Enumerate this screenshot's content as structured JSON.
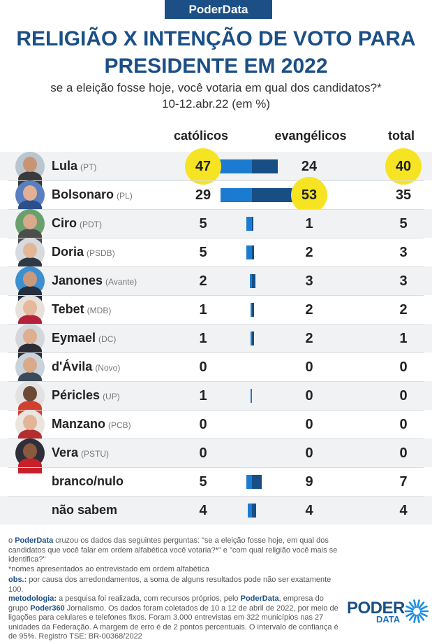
{
  "brand": "PoderData",
  "title_line1": "RELIGIÃO X INTENÇÃO DE VOTO PARA",
  "title_line2": "PRESIDENTE EM 2022",
  "subtitle_line1": "se a eleição fosse hoje, você votaria em qual dos candidatos?*",
  "subtitle_line2": "10-12.abr.22 (em %)",
  "colors": {
    "catolicos": "#1b7bd0",
    "evangelicos": "#164e85",
    "highlight": "#f6e423",
    "title": "#1b4f86"
  },
  "chart_data": {
    "type": "table",
    "columns": [
      "católicos",
      "evangélicos",
      "total"
    ],
    "rows": [
      {
        "name": "Lula",
        "party": "(PT)",
        "catolicos": 47,
        "evangelicos": 24,
        "total": 40,
        "highlight": [
          "catolicos",
          "total"
        ],
        "avatar": {
          "skin": "#c89574",
          "shirt": "#3a3a3a",
          "bg": "#b9c5cf"
        }
      },
      {
        "name": "Bolsonaro",
        "party": "(PL)",
        "catolicos": 29,
        "evangelicos": 53,
        "total": 35,
        "highlight": [
          "evangelicos"
        ],
        "avatar": {
          "skin": "#e2b195",
          "shirt": "#2a4f8a",
          "bg": "#5a7fc0"
        }
      },
      {
        "name": "Ciro",
        "party": "(PDT)",
        "catolicos": 5,
        "evangelicos": 1,
        "total": 5,
        "highlight": [],
        "avatar": {
          "skin": "#d8a98a",
          "shirt": "#4d4d4d",
          "bg": "#6aa06e"
        }
      },
      {
        "name": "Doria",
        "party": "(PSDB)",
        "catolicos": 5,
        "evangelicos": 2,
        "total": 3,
        "highlight": [],
        "avatar": {
          "skin": "#e3b698",
          "shirt": "#2f3847",
          "bg": "#d7dadf"
        }
      },
      {
        "name": "Janones",
        "party": "(Avante)",
        "catolicos": 2,
        "evangelicos": 3,
        "total": 3,
        "highlight": [],
        "avatar": {
          "skin": "#c99a7c",
          "shirt": "#22303f",
          "bg": "#3d8fcf"
        }
      },
      {
        "name": "Tebet",
        "party": "(MDB)",
        "catolicos": 1,
        "evangelicos": 2,
        "total": 2,
        "highlight": [],
        "avatar": {
          "skin": "#e6b89c",
          "shirt": "#b5203a",
          "bg": "#e8e1dc"
        }
      },
      {
        "name": "Eymael",
        "party": "(DC)",
        "catolicos": 1,
        "evangelicos": 2,
        "total": 1,
        "highlight": [],
        "avatar": {
          "skin": "#deae90",
          "shirt": "#2c2c35",
          "bg": "#d3d6da"
        }
      },
      {
        "name": "d'Ávila",
        "party": "(Novo)",
        "catolicos": 0,
        "evangelicos": 0,
        "total": 0,
        "highlight": [],
        "avatar": {
          "skin": "#d9a98a",
          "shirt": "#3a4a5a",
          "bg": "#c9d3dc"
        }
      },
      {
        "name": "Péricles",
        "party": "(UP)",
        "catolicos": 1,
        "evangelicos": 0,
        "total": 0,
        "highlight": [],
        "avatar": {
          "skin": "#6d4a34",
          "shirt": "#d33f2e",
          "bg": "#e2e2e2"
        }
      },
      {
        "name": "Manzano",
        "party": "(PCB)",
        "catolicos": 0,
        "evangelicos": 0,
        "total": 0,
        "highlight": [],
        "avatar": {
          "skin": "#e3b598",
          "shirt": "#b42e2e",
          "bg": "#ebe5df"
        }
      },
      {
        "name": "Vera",
        "party": "(PSTU)",
        "catolicos": 0,
        "evangelicos": 0,
        "total": 0,
        "highlight": [],
        "avatar": {
          "skin": "#8b5a3e",
          "shirt": "#c7202a",
          "bg": "#2f2f3a"
        }
      },
      {
        "name": "branco/nulo",
        "party": "",
        "catolicos": 5,
        "evangelicos": 9,
        "total": 7,
        "highlight": []
      },
      {
        "name": "não sabem",
        "party": "",
        "catolicos": 4,
        "evangelicos": 4,
        "total": 4,
        "highlight": []
      }
    ]
  },
  "notes": {
    "line1_prefix": "o",
    "line1_brand": "PoderData",
    "line1_rest": "cruzou os dados das seguintes perguntas: \"se a eleição fosse hoje, em qual dos candidatos que você falar em ordem alfabética você votaria?*\" e \"com qual religião você mais se identifica?\"",
    "line2": "*nomes apresentados ao entrevistado em ordem alfabética",
    "obs_label": "obs.:",
    "obs_text": "por causa dos arredondamentos, a soma de alguns resultados pode não ser exatamente 100.",
    "metodologia_label": "metodologia:",
    "metodologia_text1": "a pesquisa foi realizada, com recursos próprios, pelo",
    "metodologia_brand1": "PoderData",
    "metodologia_text2": ", empresa do grupo",
    "metodologia_brand2": "Poder360",
    "metodologia_text3": "Jornalismo. Os dados foram coletados de 10 a 12 de abril de 2022, por meio de ligações para celulares e telefones fixos. Foram 3.000 entrevistas em 322 municípios nas 27 unidades da Federação. A margem de erro é de 2 pontos percentuais. O intervalo de confiança é de 95%. Registro TSE: BR-00368/2022"
  },
  "logo": {
    "word": "PODER",
    "sub": "DATA"
  }
}
